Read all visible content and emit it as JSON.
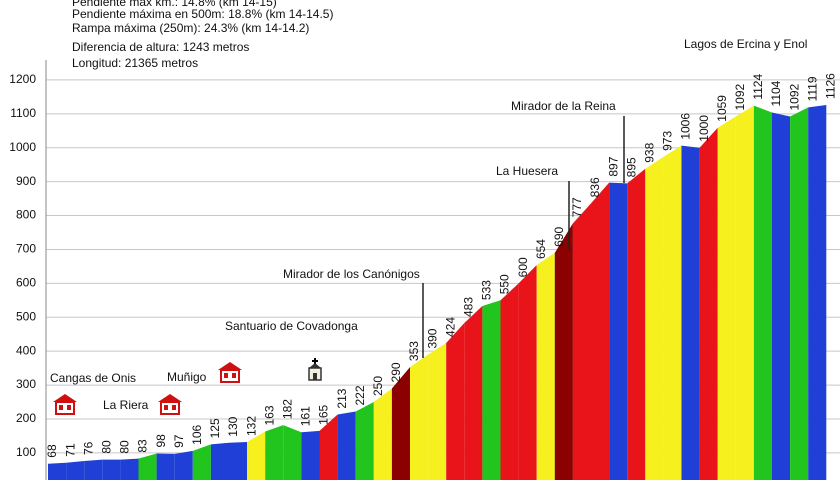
{
  "chart_data": {
    "type": "area",
    "notes": [
      "Pendiente máx km.: 14.8% (km 14-15)",
      "Pendiente máxima en 500m: 18.8% (km 14-14.5)",
      "Rampa máxima (250m): 24.3% (km 14-14.2)",
      "Diferencia de altura: 1243 metros",
      "Longitud: 21365 metros"
    ],
    "places": [
      "Cangas de Onis",
      "La Riera",
      "Muñigo",
      "Santuario de Covadonga",
      "Mirador de los Canónigos",
      "La Huesera",
      "Mirador de la Reina",
      "Lagos de Ercina y Enol"
    ],
    "series": [
      {
        "values": [
          68,
          71,
          76,
          80,
          80,
          83,
          98,
          97,
          106,
          125,
          130,
          132,
          163,
          182,
          161,
          165,
          213,
          222,
          250,
          290,
          353,
          390,
          424,
          483,
          533,
          550,
          600,
          654,
          690,
          777,
          836,
          897,
          895,
          938,
          973,
          1006,
          1000,
          1059,
          1092,
          1124,
          1104,
          1092,
          1119,
          1126
        ],
        "segment_colors": [
          "#1f3fd6",
          "#1f3fd6",
          "#1f3fd6",
          "#1f3fd6",
          "#1f3fd6",
          "#22c41e",
          "#1f3fd6",
          "#1f3fd6",
          "#22c41e",
          "#1f3fd6",
          "#1f3fd6",
          "#f5f01e",
          "#22c41e",
          "#22c41e",
          "#1f3fd6",
          "#e8141a",
          "#1f3fd6",
          "#22c41e",
          "#f5f01e",
          "#8b0000",
          "#f5f01e",
          "#f5f01e",
          "#e8141a",
          "#e8141a",
          "#22c41e",
          "#e8141a",
          "#e8141a",
          "#f5f01e",
          "#8b0000",
          "#e8141a",
          "#e8141a",
          "#1f3fd6",
          "#e8141a",
          "#f5f01e",
          "#f5f01e",
          "#1f3fd6",
          "#e8141a",
          "#f5f01e",
          "#f5f01e",
          "#22c41e",
          "#1f3fd6",
          "#22c41e",
          "#1f3fd6"
        ]
      }
    ],
    "ylim": [
      20,
      1300
    ],
    "yticks": [
      100,
      200,
      300,
      400,
      500,
      600,
      700,
      800,
      900,
      1000,
      1100,
      1200
    ],
    "grid": true
  }
}
